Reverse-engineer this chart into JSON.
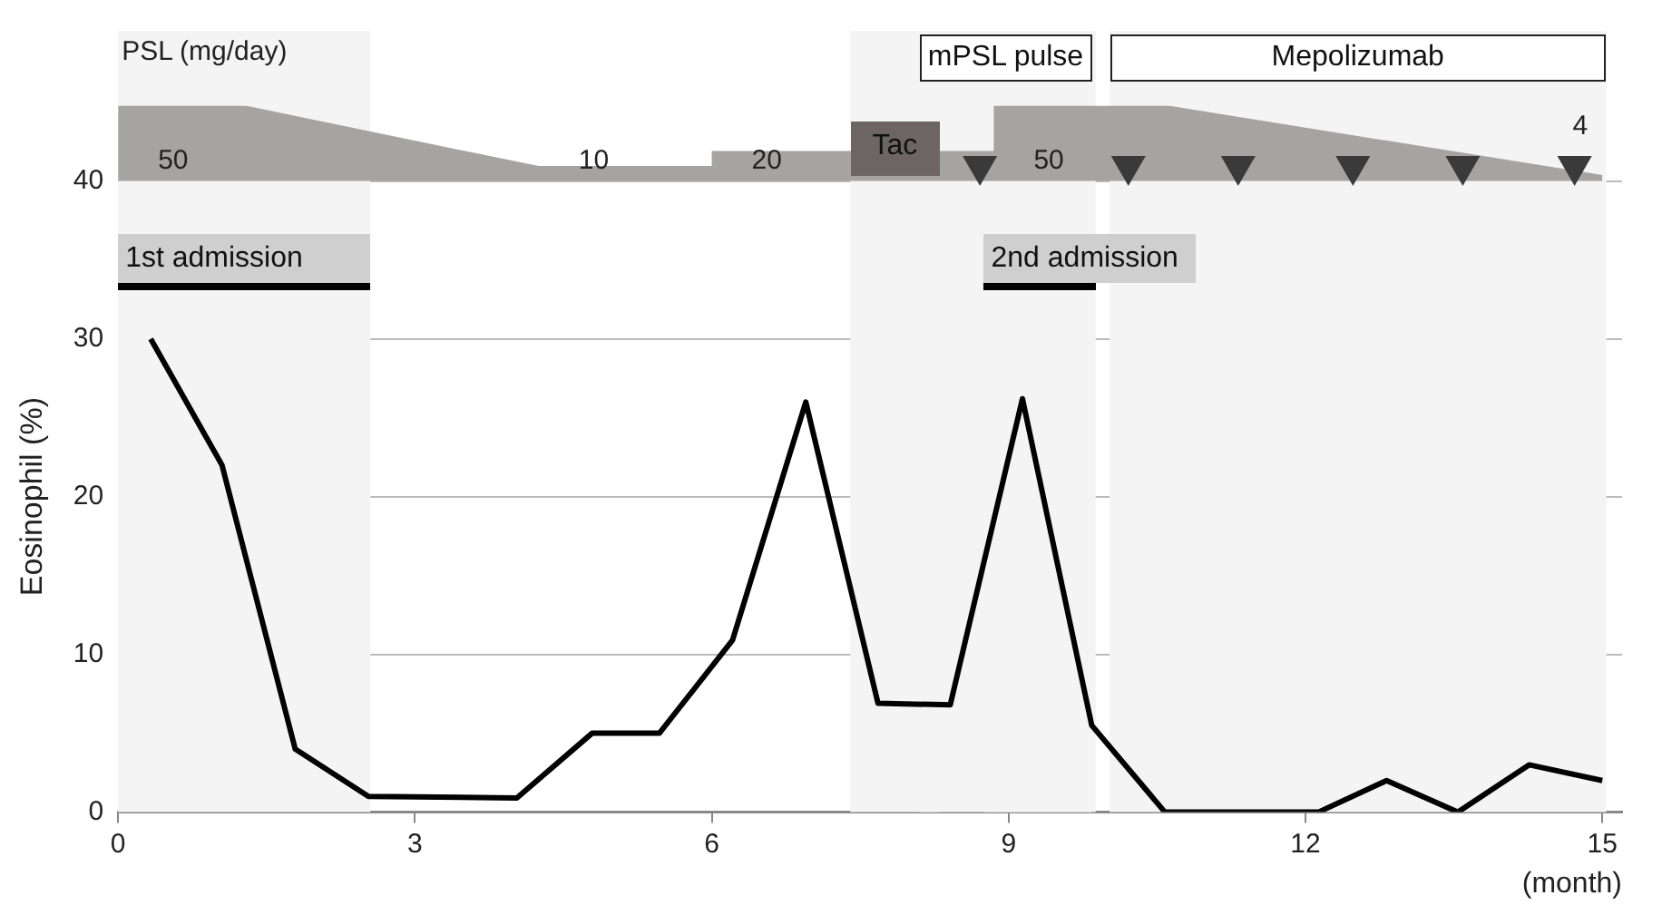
{
  "chart_data": {
    "type": "line",
    "ylabel": "Eosinophil (%)",
    "xlabel": "(month)",
    "y2label": "PSL (mg/day)",
    "x": [
      0.33,
      1.05,
      1.79,
      2.53,
      4.03,
      4.79,
      5.47,
      6.21,
      6.95,
      7.68,
      8.41,
      9.14,
      9.84,
      10.58,
      12.13,
      12.82,
      13.54,
      14.26,
      15
    ],
    "series": [
      {
        "color": "#000000",
        "values": [
          30,
          22,
          4,
          1,
          0.9,
          5,
          5,
          10.9,
          26,
          6.9,
          6.8,
          26.2,
          5.5,
          0,
          0,
          2,
          0,
          3,
          2
        ]
      },
      {
        "type": "area",
        "axis": "y2",
        "color": "#a6a3a3",
        "x": [
          0,
          1.3,
          4.25,
          6.0,
          6.0,
          8.85,
          8.85,
          10.63,
          15
        ],
        "values": [
          50,
          50,
          10,
          10,
          20,
          20,
          50,
          50,
          4
        ],
        "value_labels": [
          "50",
          null,
          "10",
          null,
          "20",
          null,
          "50",
          null,
          "4"
        ]
      },
      {
        "type": "scatter",
        "axis": "y2",
        "color": "#3a3a3a",
        "marker": "triangle",
        "x": [
          8.71,
          10.21,
          11.32,
          12.48,
          13.59,
          14.72
        ],
        "values": [
          10,
          10,
          10,
          10,
          10,
          10
        ]
      }
    ],
    "bands": [
      {
        "axis": "x",
        "from": 0,
        "to": 2.55,
        "label": "1st admission"
      },
      {
        "axis": "x",
        "from": 8.75,
        "to": 9.88,
        "label": "2nd admission"
      },
      {
        "axis": "x",
        "from": 7.4,
        "to": 8.3,
        "label": "Tac"
      },
      {
        "axis": "x",
        "from": 8.1,
        "to": 9.84,
        "label": "mPSL pulse"
      },
      {
        "axis": "x",
        "from": 10.02,
        "to": 15.04,
        "label": "Mepolizumab"
      }
    ],
    "xlim": [
      0,
      15.2
    ],
    "xticks": [
      0,
      3,
      6,
      9,
      12,
      15
    ],
    "ylim": [
      0,
      40
    ],
    "yticks": [
      0,
      10,
      20,
      30,
      40
    ],
    "grid": "y",
    "legend": false,
    "marker": "none",
    "line_style": "solid"
  }
}
